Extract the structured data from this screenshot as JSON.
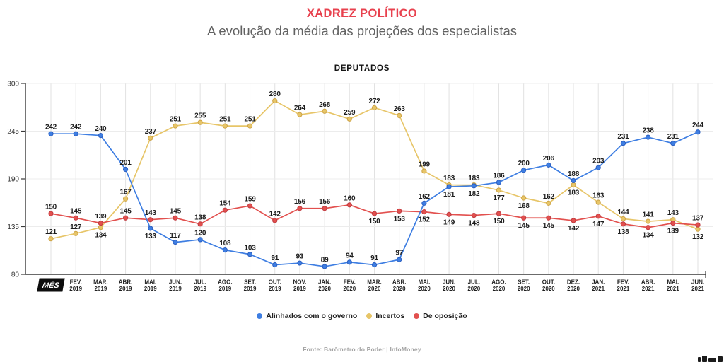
{
  "header": {
    "title": "XADREZ POLÍTICO",
    "subtitle": "A evolução da média das projeções dos especialistas"
  },
  "chart_data": {
    "type": "line",
    "title": "DEPUTADOS",
    "xlabel": "MÊS",
    "ylabel": "",
    "ylim": [
      80,
      300
    ],
    "y_ticks": [
      300,
      245,
      190,
      135,
      80
    ],
    "grid": "both",
    "legend_position": "bottom",
    "categories": [
      [
        "MÊS",
        ""
      ],
      [
        "FEV.",
        "2019"
      ],
      [
        "MAR.",
        "2019"
      ],
      [
        "ABR.",
        "2019"
      ],
      [
        "MAI.",
        "2019"
      ],
      [
        "JUN.",
        "2019"
      ],
      [
        "JUL.",
        "2019"
      ],
      [
        "AGO.",
        "2019"
      ],
      [
        "SET.",
        "2019"
      ],
      [
        "OUT.",
        "2019"
      ],
      [
        "NOV.",
        "2019"
      ],
      [
        "JAN.",
        "2020"
      ],
      [
        "FEV.",
        "2020"
      ],
      [
        "MAR.",
        "2020"
      ],
      [
        "ABR.",
        "2020"
      ],
      [
        "MAI.",
        "2020"
      ],
      [
        "JUN.",
        "2020"
      ],
      [
        "JUL.",
        "2020"
      ],
      [
        "AGO.",
        "2020"
      ],
      [
        "SET.",
        "2020"
      ],
      [
        "OUT.",
        "2020"
      ],
      [
        "DEZ.",
        "2020"
      ],
      [
        "JAN.",
        "2021"
      ],
      [
        "FEV.",
        "2021"
      ],
      [
        "ABR.",
        "2021"
      ],
      [
        "MAI.",
        "2021"
      ],
      [
        "JUN.",
        "2021"
      ]
    ],
    "series": [
      {
        "name": "Alinhados com o governo",
        "color": "#3E7EE2",
        "dark": "#2c5fc0",
        "values": [
          242,
          242,
          240,
          201,
          133,
          117,
          120,
          108,
          103,
          91,
          93,
          89,
          94,
          91,
          97,
          162,
          181,
          182,
          186,
          200,
          206,
          188,
          203,
          231,
          238,
          231,
          244
        ],
        "label_side": [
          "a",
          "a",
          "a",
          "a",
          "b",
          "a",
          "a",
          "a",
          "a",
          "a",
          "a",
          "a",
          "a",
          "a",
          "a",
          "a",
          "b",
          "b",
          "a",
          "a",
          "a",
          "a",
          "a",
          "a",
          "a",
          "a",
          "a"
        ]
      },
      {
        "name": "Incertos",
        "color": "#E7C568",
        "dark": "#cda345",
        "values": [
          121,
          127,
          134,
          167,
          237,
          251,
          255,
          251,
          251,
          280,
          264,
          268,
          259,
          272,
          263,
          199,
          183,
          183,
          177,
          168,
          162,
          183,
          163,
          144,
          141,
          143,
          132
        ],
        "label_side": [
          "a",
          "a",
          "b",
          "a",
          "a",
          "a",
          "a",
          "a",
          "a",
          "a",
          "a",
          "a",
          "a",
          "a",
          "a",
          "a",
          "a",
          "a",
          "b",
          "b",
          "a",
          "b",
          "a",
          "a",
          "a",
          "a",
          "b"
        ]
      },
      {
        "name": "De oposição",
        "color": "#E2504E",
        "dark": "#bf3a40",
        "values": [
          150,
          145,
          139,
          145,
          143,
          145,
          138,
          154,
          159,
          142,
          156,
          156,
          160,
          150,
          153,
          152,
          149,
          148,
          150,
          145,
          145,
          142,
          147,
          138,
          134,
          139,
          137
        ],
        "label_side": [
          "a",
          "a",
          "a",
          "a",
          "a",
          "a",
          "a",
          "a",
          "a",
          "a",
          "a",
          "a",
          "a",
          "b",
          "b",
          "b",
          "b",
          "b",
          "b",
          "b",
          "b",
          "b",
          "b",
          "b",
          "b",
          "b",
          "a"
        ]
      }
    ]
  },
  "footer": {
    "source": "Fonte: Barômetro do Poder | InfoMoney"
  }
}
